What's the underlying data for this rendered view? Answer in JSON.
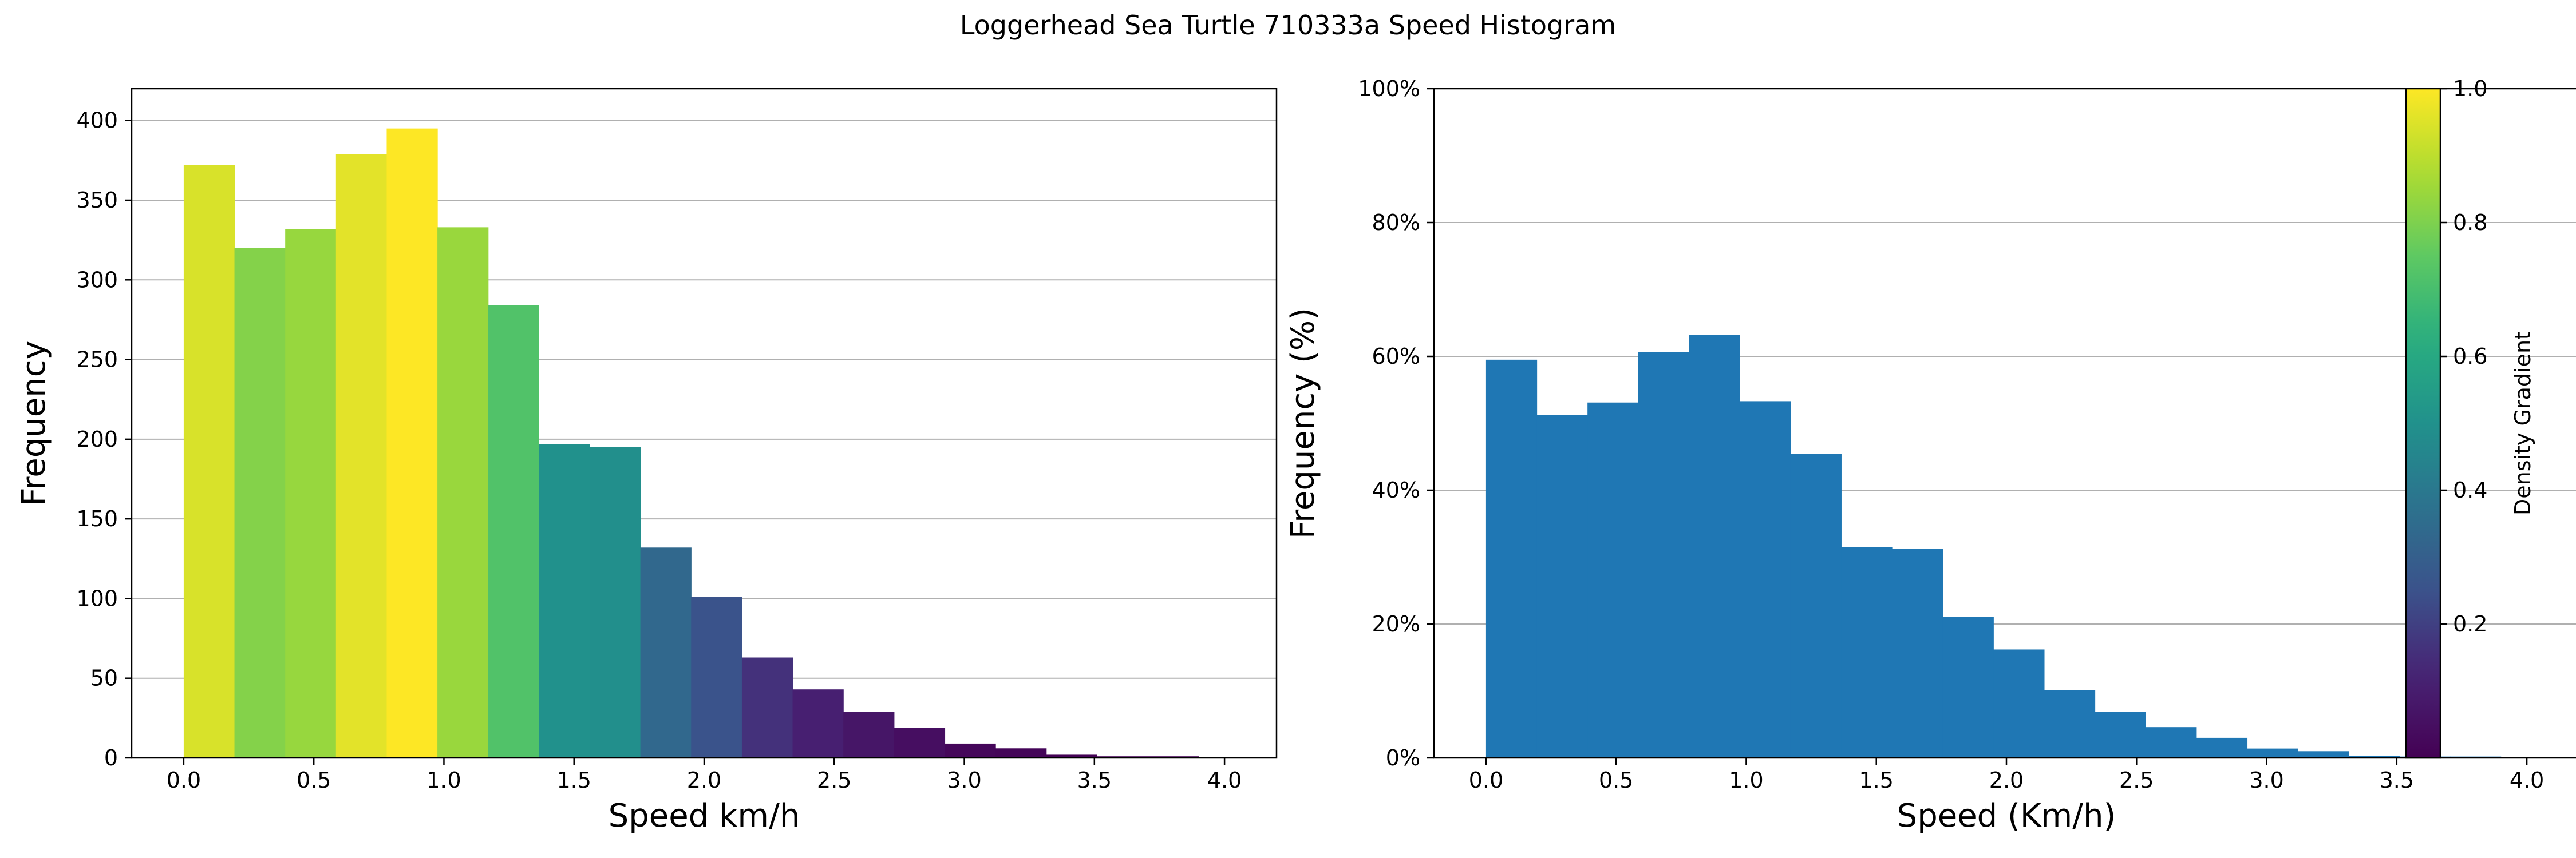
{
  "figure": {
    "title": "Loggerhead Sea Turtle 710333a Speed Histogram"
  },
  "chart_data": [
    {
      "type": "bar",
      "xlabel": "Speed km/h",
      "ylabel": "Frequency",
      "xlim": [
        -0.2,
        4.2
      ],
      "ylim": [
        0,
        420
      ],
      "xticks": [
        0.0,
        0.5,
        1.0,
        1.5,
        2.0,
        2.5,
        3.0,
        3.5,
        4.0
      ],
      "xtick_labels": [
        "0.0",
        "0.5",
        "1.0",
        "1.5",
        "2.0",
        "2.5",
        "3.0",
        "3.5",
        "4.0"
      ],
      "yticks": [
        0,
        50,
        100,
        150,
        200,
        250,
        300,
        350,
        400
      ],
      "ytick_labels": [
        "0",
        "50",
        "100",
        "150",
        "200",
        "250",
        "300",
        "350",
        "400"
      ],
      "grid": "y",
      "bin_edges": [
        0.0,
        0.195,
        0.39,
        0.585,
        0.78,
        0.975,
        1.17,
        1.365,
        1.56,
        1.755,
        1.95,
        2.145,
        2.34,
        2.535,
        2.73,
        2.925,
        3.12,
        3.315,
        3.51,
        3.705,
        3.9
      ],
      "values": [
        372,
        320,
        332,
        379,
        395,
        333,
        284,
        197,
        195,
        132,
        101,
        63,
        43,
        29,
        19,
        9,
        6,
        2,
        1,
        1
      ],
      "color_by": "density"
    },
    {
      "type": "bar",
      "xlabel": "Speed (Km/h)",
      "ylabel": "Frequency (%)",
      "xlim": [
        -0.2,
        4.2
      ],
      "ylim": [
        0,
        100
      ],
      "xticks": [
        0.0,
        0.5,
        1.0,
        1.5,
        2.0,
        2.5,
        3.0,
        3.5,
        4.0
      ],
      "xtick_labels": [
        "0.0",
        "0.5",
        "1.0",
        "1.5",
        "2.0",
        "2.5",
        "3.0",
        "3.5",
        "4.0"
      ],
      "yticks": [
        0,
        20,
        40,
        60,
        80,
        100
      ],
      "ytick_labels": [
        "0%",
        "20%",
        "40%",
        "60%",
        "80%",
        "100%"
      ],
      "grid": "y",
      "color": "#1f77b4",
      "bin_edges": [
        0.0,
        0.195,
        0.39,
        0.585,
        0.78,
        0.975,
        1.17,
        1.365,
        1.56,
        1.755,
        1.95,
        2.145,
        2.34,
        2.535,
        2.73,
        2.925,
        3.12,
        3.315,
        3.51,
        3.705,
        3.9
      ],
      "values": [
        59.5,
        51.2,
        53.1,
        60.6,
        63.2,
        53.3,
        45.4,
        31.5,
        31.2,
        21.1,
        16.2,
        10.1,
        6.9,
        4.6,
        3.0,
        1.4,
        1.0,
        0.3,
        0.2,
        0.2
      ]
    }
  ],
  "colorbar": {
    "label": "Density Gradient",
    "range": [
      0,
      1
    ],
    "ticks": [
      0.2,
      0.4,
      0.6,
      0.8,
      1.0
    ],
    "tick_labels": [
      "0.2",
      "0.4",
      "0.6",
      "0.8",
      "1.0"
    ],
    "colormap": "viridis"
  }
}
